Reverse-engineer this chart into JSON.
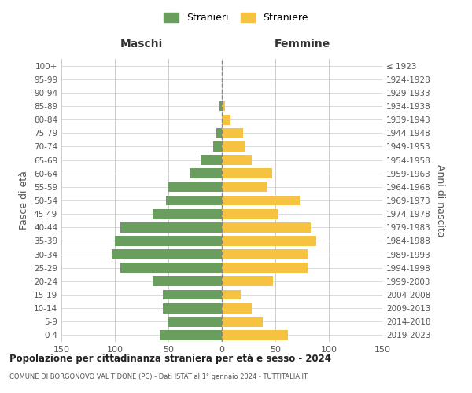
{
  "age_groups": [
    "100+",
    "95-99",
    "90-94",
    "85-89",
    "80-84",
    "75-79",
    "70-74",
    "65-69",
    "60-64",
    "55-59",
    "50-54",
    "45-49",
    "40-44",
    "35-39",
    "30-34",
    "25-29",
    "20-24",
    "15-19",
    "10-14",
    "5-9",
    "0-4"
  ],
  "birth_years": [
    "≤ 1923",
    "1924-1928",
    "1929-1933",
    "1934-1938",
    "1939-1943",
    "1944-1948",
    "1949-1953",
    "1954-1958",
    "1959-1963",
    "1964-1968",
    "1969-1973",
    "1974-1978",
    "1979-1983",
    "1984-1988",
    "1989-1993",
    "1994-1998",
    "1999-2003",
    "2004-2008",
    "2009-2013",
    "2014-2018",
    "2019-2023"
  ],
  "maschi": [
    0,
    0,
    0,
    2,
    0,
    5,
    8,
    20,
    30,
    50,
    52,
    65,
    95,
    100,
    103,
    95,
    65,
    55,
    55,
    50,
    58
  ],
  "femmine": [
    0,
    0,
    0,
    3,
    8,
    20,
    22,
    28,
    47,
    43,
    73,
    53,
    83,
    88,
    80,
    80,
    48,
    18,
    28,
    38,
    62
  ],
  "color_maschi": "#6a9e5e",
  "color_femmine": "#f5c242",
  "xlim": 150,
  "title": "Popolazione per cittadinanza straniera per età e sesso - 2024",
  "subtitle": "COMUNE DI BORGONOVO VAL TIDONE (PC) - Dati ISTAT al 1° gennaio 2024 - TUTTITALIA.IT",
  "xlabel_left": "Maschi",
  "xlabel_right": "Femmine",
  "ylabel_left": "Fasce di età",
  "ylabel_right": "Anni di nascita",
  "legend_maschi": "Stranieri",
  "legend_femmine": "Straniere",
  "bg_color": "#ffffff",
  "grid_color": "#cccccc"
}
